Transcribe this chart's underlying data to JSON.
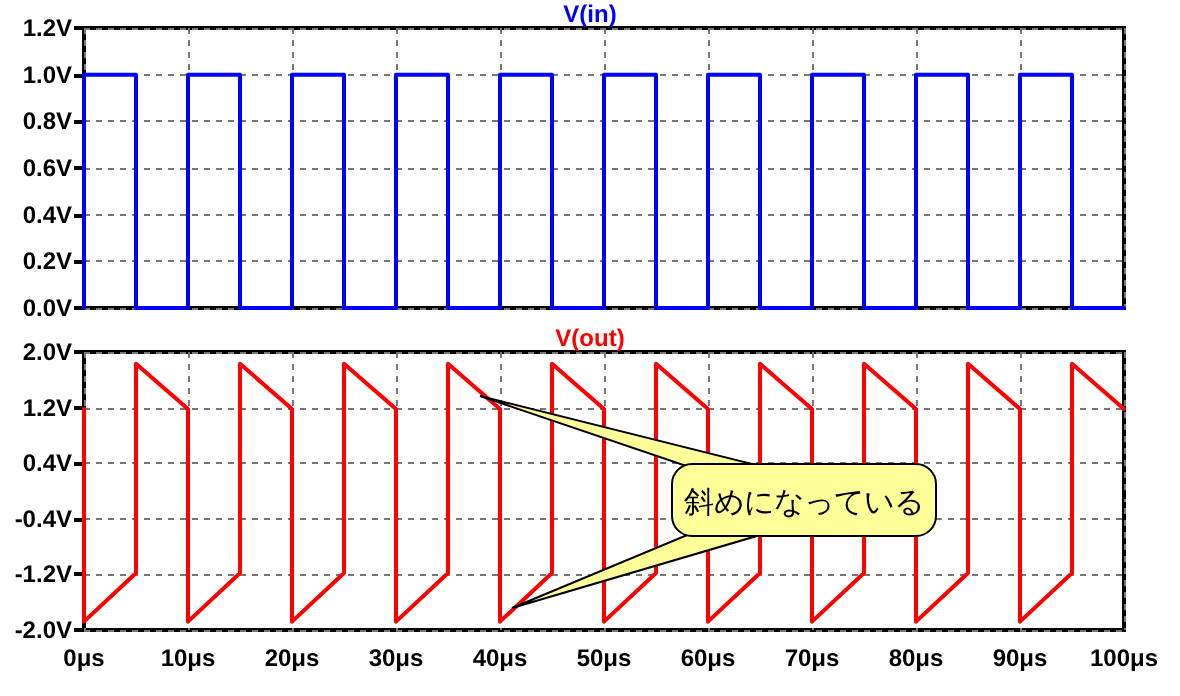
{
  "chart_data": [
    {
      "type": "line",
      "tick_labels": "y",
      "grid": true,
      "marker": "none",
      "line_style": "solid",
      "xlim": [
        0,
        100
      ],
      "xticks": [
        0,
        10,
        20,
        30,
        40,
        50,
        60,
        70,
        80,
        90,
        100
      ],
      "ylim": [
        0,
        1.2
      ],
      "yticks": [
        {
          "value": 0,
          "label": "0.0V"
        },
        {
          "value": 0.2,
          "label": "0.2V"
        },
        {
          "value": 0.4,
          "label": "0.4V"
        },
        {
          "value": 0.6,
          "label": "0.6V"
        },
        {
          "value": 0.8,
          "label": "0.8V"
        },
        {
          "value": 1.0,
          "label": "1.0V"
        },
        {
          "value": 1.2,
          "label": "1.2V"
        }
      ],
      "x": [
        0,
        0,
        5,
        5,
        10,
        10,
        15,
        15,
        20,
        20,
        25,
        25,
        30,
        30,
        35,
        35,
        40,
        40,
        45,
        45,
        50,
        50,
        55,
        55,
        60,
        60,
        65,
        65,
        70,
        70,
        75,
        75,
        80,
        80,
        85,
        85,
        90,
        90,
        95,
        95,
        100
      ],
      "series": [
        {
          "name": "V(in)",
          "color": "#0000ff",
          "values": [
            0,
            1,
            1,
            0,
            0,
            1,
            1,
            0,
            0,
            1,
            1,
            0,
            0,
            1,
            1,
            0,
            0,
            1,
            1,
            0,
            0,
            1,
            1,
            0,
            0,
            1,
            1,
            0,
            0,
            1,
            1,
            0,
            0,
            1,
            1,
            0,
            0,
            1,
            1,
            0,
            0
          ]
        }
      ]
    },
    {
      "type": "line",
      "grid": true,
      "marker": "none",
      "line_style": "solid",
      "xlim": [
        0,
        100
      ],
      "xticks": [
        {
          "value": 0,
          "label": "0μs"
        },
        {
          "value": 10,
          "label": "10μs"
        },
        {
          "value": 20,
          "label": "20μs"
        },
        {
          "value": 30,
          "label": "30μs"
        },
        {
          "value": 40,
          "label": "40μs"
        },
        {
          "value": 50,
          "label": "50μs"
        },
        {
          "value": 60,
          "label": "60μs"
        },
        {
          "value": 70,
          "label": "70μs"
        },
        {
          "value": 80,
          "label": "80μs"
        },
        {
          "value": 90,
          "label": "90μs"
        },
        {
          "value": 100,
          "label": "100μs"
        }
      ],
      "ylim": [
        -2,
        2
      ],
      "yticks": [
        {
          "value": -2,
          "label": "-2.0V"
        },
        {
          "value": -1.2,
          "label": "-1.2V"
        },
        {
          "value": -0.4,
          "label": "-0.4V"
        },
        {
          "value": 0.4,
          "label": "0.4V"
        },
        {
          "value": 1.2,
          "label": "1.2V"
        },
        {
          "value": 2,
          "label": "2.0V"
        }
      ],
      "x": [
        0,
        0,
        5,
        5,
        10,
        10,
        15,
        15,
        20,
        20,
        25,
        25,
        30,
        30,
        35,
        35,
        40,
        40,
        45,
        45,
        50,
        50,
        55,
        55,
        60,
        60,
        65,
        65,
        70,
        70,
        75,
        75,
        80,
        80,
        85,
        85,
        90,
        90,
        95,
        95,
        100
      ],
      "series": [
        {
          "name": "V(out)",
          "color": "#ff0000",
          "values": [
            1.18,
            -1.88,
            -1.18,
            1.83,
            1.18,
            -1.88,
            -1.18,
            1.83,
            1.18,
            -1.88,
            -1.18,
            1.83,
            1.18,
            -1.88,
            -1.18,
            1.83,
            1.18,
            -1.88,
            -1.18,
            1.83,
            1.18,
            -1.88,
            -1.18,
            1.83,
            1.18,
            -1.88,
            -1.18,
            1.83,
            1.18,
            -1.88,
            -1.18,
            1.83,
            1.18,
            -1.88,
            -1.18,
            1.83,
            1.18,
            -1.88,
            -1.18,
            1.83,
            1.18
          ]
        }
      ],
      "annotations": [
        "斜めになっている"
      ]
    }
  ]
}
